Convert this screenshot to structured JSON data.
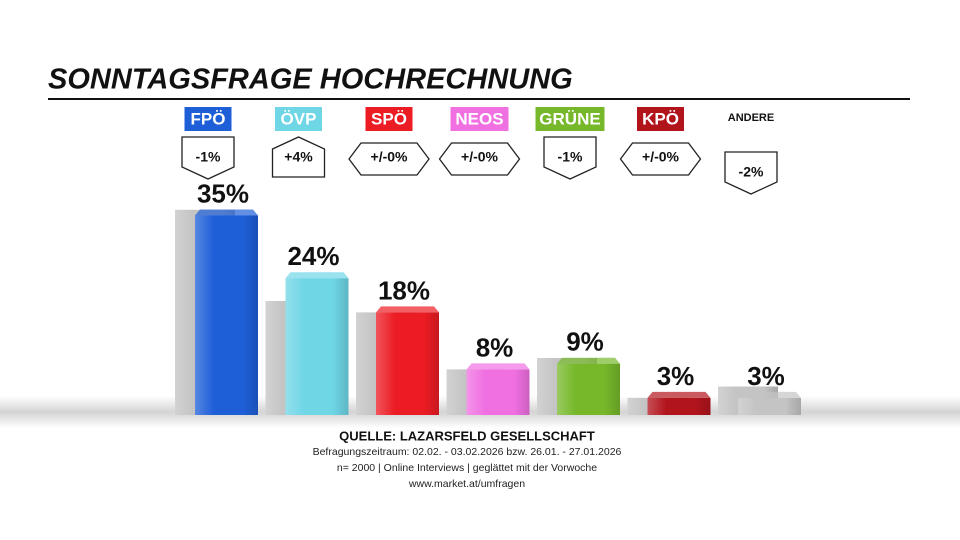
{
  "chart_data": {
    "type": "bar",
    "title": "SONNTAGSFRAGE HOCHRECHNUNG",
    "categories": [
      "FPÖ",
      "ÖVP",
      "SPÖ",
      "NEOS",
      "GRÜNE",
      "KPÖ",
      "ANDERE"
    ],
    "colors": [
      "#1e5fd8",
      "#6fd6e6",
      "#ec1c24",
      "#f070e2",
      "#76b82a",
      "#b2141c",
      null
    ],
    "values": [
      35,
      24,
      18,
      8,
      9,
      3,
      3
    ],
    "value_labels": [
      "35%",
      "24%",
      "18%",
      "8%",
      "9%",
      "3%",
      "3%"
    ],
    "previous_values": [
      36,
      20,
      18,
      8,
      10,
      3,
      5
    ],
    "previous_color": "#c4c4c4",
    "change_labels": [
      "-1%",
      "+4%",
      "+/-0%",
      "+/-0%",
      "-1%",
      "+/-0%",
      "-2%"
    ],
    "source": "QUELLE: LAZARSFELD GESELLSCHAFT",
    "notes": [
      "Befragungszeitraum: 02.02. - 03.02.2026 bzw. 26.01. - 27.01.2026",
      "n= 2000 | Online Interviews | geglättet mit der Vorwoche",
      "www.market.at/umfragen"
    ]
  }
}
